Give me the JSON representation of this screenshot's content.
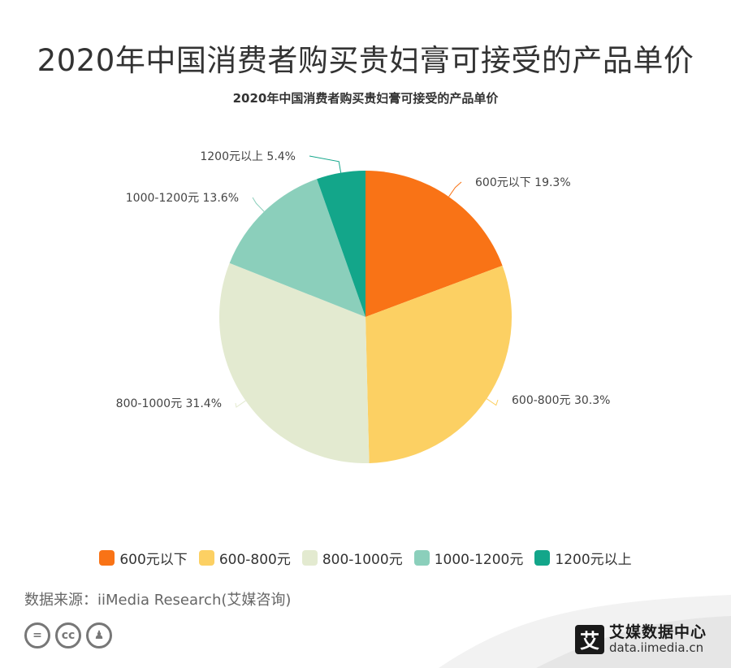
{
  "page": {
    "title": "2020年中国消费者购买贵妇膏可接受的产品单价",
    "source": "数据来源：iiMedia Research(艾媒咨询)"
  },
  "brand": {
    "logo_char": "艾",
    "name": "艾媒数据中心",
    "url": "data.iimedia.cn"
  },
  "cc_icons": [
    {
      "icon": "equals-icon",
      "glyph": "="
    },
    {
      "icon": "cc-icon",
      "glyph": "cc"
    },
    {
      "icon": "person-icon",
      "glyph": "♟"
    }
  ],
  "chart_data": {
    "type": "pie",
    "title": "2020年中国消费者购买贵妇膏可接受的产品单价",
    "legend_position": "bottom",
    "slices": [
      {
        "label": "600元以下",
        "value": 19.3,
        "display": "600元以下 19.3%",
        "color": "#f97316"
      },
      {
        "label": "600-800元",
        "value": 30.3,
        "display": "600-800元 30.3%",
        "color": "#fcd063"
      },
      {
        "label": "800-1000元",
        "value": 31.4,
        "display": "800-1000元 31.4%",
        "color": "#e3ead0"
      },
      {
        "label": "1000-1200元",
        "value": 13.6,
        "display": "1000-1200元 13.6%",
        "color": "#8bcfbb"
      },
      {
        "label": "1200元以上",
        "value": 5.4,
        "display": "1200元以上 5.4%",
        "color": "#13a68a"
      }
    ]
  }
}
